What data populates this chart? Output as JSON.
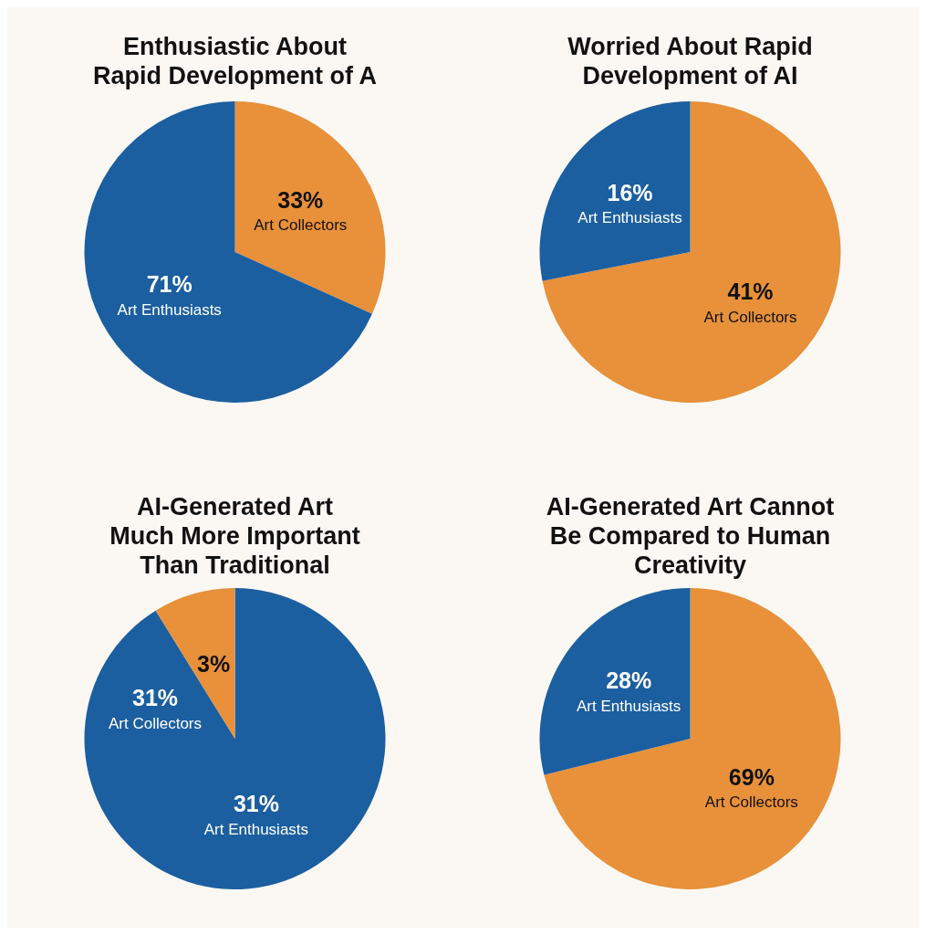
{
  "chart_data": [
    {
      "type": "pie",
      "title": "Enthusiastic About\nRapid Development of A",
      "categories": [
        "Art Collectors",
        "Art Enthusiasts"
      ],
      "values": [
        33,
        71
      ],
      "value_labels": [
        "33%",
        "71%"
      ],
      "colors": [
        "#e8913a",
        "#1c5fa0"
      ],
      "legend": false
    },
    {
      "type": "pie",
      "title": "Worried About Rapid\nDevelopment of AI",
      "categories": [
        "Art Collectors",
        "Art Enthusiasts"
      ],
      "values": [
        41,
        16
      ],
      "value_labels": [
        "41%",
        "16%"
      ],
      "colors": [
        "#e8913a",
        "#1c5fa0"
      ],
      "legend": false
    },
    {
      "type": "pie",
      "title": "AI-Generated Art\nMuch More Important\nThan Traditional",
      "categories": [
        "Art Enthusiasts",
        null
      ],
      "values": [
        31,
        3
      ],
      "value_labels": [
        "31%",
        "3%"
      ],
      "colors": [
        "#1c5fa0",
        "#e8913a"
      ],
      "legend": false,
      "annotations": [
        "31%\nArt Collectors"
      ]
    },
    {
      "type": "pie",
      "title": "AI-Generated Art Cannot\nBe Compared to Human\nCreativity",
      "categories": [
        "Art Collectors",
        "Art Enthusiasts"
      ],
      "values": [
        69,
        28
      ],
      "value_labels": [
        "69%",
        "28%"
      ],
      "colors": [
        "#e8913a",
        "#1c5fa0"
      ],
      "legend": false
    }
  ]
}
